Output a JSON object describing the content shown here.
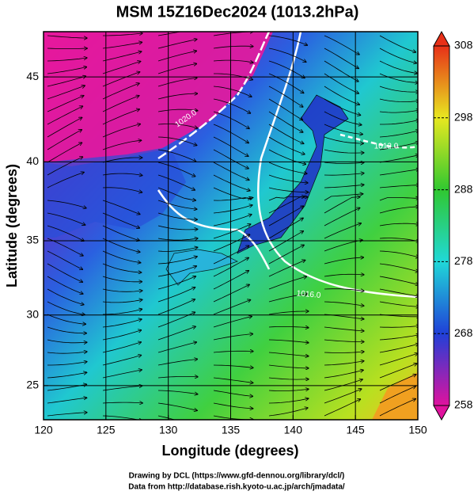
{
  "chart_data": {
    "type": "map",
    "title": "MSM 15Z16Dec2024 (1013.2hPa)",
    "xlabel": "Longitude (degrees)",
    "ylabel": "Latitude  (degrees)",
    "projection": "mercator",
    "xlim": [
      120,
      150
    ],
    "ylim": [
      22.5,
      47.5
    ],
    "xticks": [
      120,
      125,
      130,
      135,
      140,
      145,
      150
    ],
    "yticks": [
      25,
      30,
      35,
      40,
      45
    ],
    "grid": true,
    "colorbar": {
      "lim": [
        258,
        308
      ],
      "ticks": [
        258,
        268,
        278,
        288,
        298,
        308
      ],
      "colors": [
        "#e0129e",
        "#2040d8",
        "#20d8d8",
        "#30c830",
        "#e8e820",
        "#e83018"
      ]
    },
    "contour_labels": [
      "1020.0",
      "1016.0",
      "1012.0"
    ],
    "credits": [
      "Drawing by DCL (https://www.gfd-dennou.org/library/dcl/)",
      "Data from http://database.rish.kyoto-u.ac.jp/arch/jmadata/"
    ]
  }
}
